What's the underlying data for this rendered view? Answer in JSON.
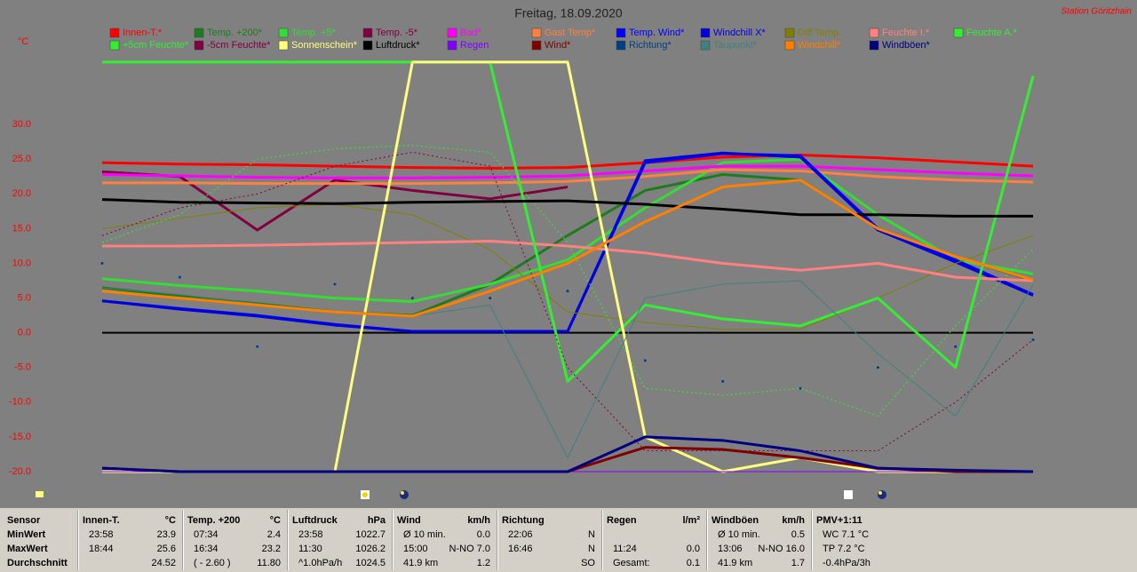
{
  "chart_data": {
    "type": "line",
    "title": "Freitag, 18.09.2020",
    "station": "Station Göritzhain",
    "y_label": "°C",
    "categories": [
      null,
      null,
      null,
      null,
      null,
      null,
      null,
      null,
      null,
      null,
      null,
      null,
      null
    ],
    "ylim": [
      -20,
      40
    ],
    "yticks": [
      {
        "value": -20,
        "label": "-20.0"
      },
      {
        "value": -15,
        "label": "-15.0"
      },
      {
        "value": -10,
        "label": "-10.0"
      },
      {
        "value": -5,
        "label": "-5.0"
      },
      {
        "value": 0,
        "label": "0.0"
      },
      {
        "value": 5,
        "label": "5.0"
      },
      {
        "value": 10,
        "label": "10.0"
      },
      {
        "value": 15,
        "label": "15.0"
      },
      {
        "value": 20,
        "label": "20.0"
      },
      {
        "value": 25,
        "label": "25.0"
      },
      {
        "value": 30,
        "label": "30.0"
      }
    ],
    "zero_line": true,
    "series": [
      {
        "name": "Innen-T.*",
        "color": "#ff0000",
        "values": [
          24.5,
          24.3,
          24.2,
          24.0,
          23.8,
          23.7,
          23.8,
          24.5,
          25.3,
          25.6,
          25.2,
          24.6,
          24.0
        ]
      },
      {
        "name": "Temp. +200*",
        "color": "#1e7b1e",
        "values": [
          6.5,
          5.3,
          4.2,
          3.0,
          2.5,
          7,
          14,
          20.5,
          22.8,
          22,
          15,
          11,
          7.5
        ]
      },
      {
        "name": "Temp. +5*",
        "color": "#33dd33",
        "values": [
          7.8,
          6.8,
          6,
          5,
          4.5,
          7,
          10.5,
          18,
          24.5,
          25,
          17,
          10.5,
          8.5
        ]
      },
      {
        "name": "Temp. -5*",
        "color": "#800040",
        "values": [
          23.2,
          22.5,
          14.8,
          22,
          20.5,
          19.3,
          21,
          null,
          null,
          null,
          null,
          null,
          null
        ]
      },
      {
        "name": "Bad*",
        "color": "#ff00ff",
        "values": [
          22.8,
          22.6,
          22.4,
          22.3,
          22.3,
          22.4,
          22.6,
          23.3,
          24.0,
          24.0,
          23.5,
          23.0,
          22.6
        ]
      },
      {
        "name": "Gast Temp*",
        "color": "#ff8040",
        "values": [
          21.6,
          21.6,
          21.5,
          21.5,
          21.5,
          21.6,
          21.8,
          22.5,
          23.5,
          23.3,
          22.5,
          22,
          21.7
        ]
      },
      {
        "name": "Temp. Wind*",
        "color": "#0000ff",
        "values": [
          4.6,
          3.5,
          2.5,
          1.2,
          0.2,
          0.2,
          0.2,
          24.5,
          25.8,
          25.5,
          15,
          10.5,
          5.5
        ]
      },
      {
        "name": "Windchill X*",
        "color": "#0000e0",
        "values": [
          4.6,
          3.4,
          2.4,
          1.1,
          0.2,
          0.2,
          0.2,
          24.8,
          25.9,
          25.3,
          14.8,
          10.2,
          5.4
        ]
      },
      {
        "name": "Diff Temp.",
        "color": "#808000",
        "style": "thin",
        "values": [
          15,
          16.5,
          18,
          18.5,
          17,
          12,
          3,
          1.5,
          0.5,
          0.5,
          5,
          10,
          14
        ]
      },
      {
        "name": "Feuchte I.*",
        "color": "#ff8080",
        "values": [
          12.5,
          12.5,
          12.6,
          12.8,
          13,
          13.2,
          12.5,
          11.5,
          10,
          9,
          10,
          8,
          7.5
        ]
      },
      {
        "name": "Feuchte A.*",
        "color": "#33ee33",
        "values": [
          39,
          39,
          39,
          39,
          39,
          39,
          -7,
          4,
          2,
          1,
          5,
          -5,
          37
        ]
      },
      {
        "name": "+5cm Feuchte*",
        "color": "#33ee33",
        "style": "dotted",
        "values": [
          13,
          17,
          25,
          26.5,
          27,
          26,
          13,
          -8,
          -9,
          -8,
          -12,
          1,
          12
        ]
      },
      {
        "name": "-5cm Feuchte*",
        "color": "#800040",
        "style": "dotted",
        "values": [
          14,
          18,
          20,
          24,
          26,
          24,
          -5,
          -17,
          -17,
          -17,
          -17,
          -10,
          -1
        ]
      },
      {
        "name": "Sonnenschein*",
        "color": "#ffff80",
        "values": [
          -20,
          -20,
          -20,
          -20,
          39,
          39,
          39,
          -15,
          -20,
          -18,
          -20,
          -20,
          -20
        ]
      },
      {
        "name": "Luftdruck*",
        "color": "#000000",
        "values": [
          19.2,
          18.8,
          18.7,
          18.6,
          18.8,
          18.9,
          19.0,
          18.5,
          17.8,
          17,
          17,
          16.8,
          16.8
        ]
      },
      {
        "name": "Regen",
        "color": "#8000ff",
        "style": "thin",
        "values": [
          -20,
          -20,
          -20,
          -20,
          -20,
          -20,
          -20,
          -20,
          -20,
          -20,
          -20,
          -20,
          -20
        ]
      },
      {
        "name": "Wind*",
        "color": "#800000",
        "values": [
          -19.5,
          -20,
          -20,
          -20,
          -20,
          -20,
          -20,
          -16.5,
          -16.8,
          -18,
          -19.5,
          -20,
          -20
        ]
      },
      {
        "name": "Richtung*",
        "color": "#004080",
        "style": "dots",
        "values": [
          10,
          8,
          -2,
          7,
          5,
          5,
          6,
          -4,
          -7,
          -8,
          -5,
          -2,
          -1
        ]
      },
      {
        "name": "Taupunkt*",
        "color": "#408080",
        "style": "thin",
        "values": [
          6.5,
          5.5,
          4.2,
          3,
          2.4,
          4,
          -18,
          5,
          7,
          7.5,
          -3,
          -12,
          7
        ]
      },
      {
        "name": "Windchill*",
        "color": "#ff8000",
        "values": [
          6,
          5,
          4,
          3,
          2.4,
          6,
          10,
          16,
          21,
          22,
          15,
          11,
          7.6
        ]
      },
      {
        "name": "Windböen*",
        "color": "#000080",
        "values": [
          -19.5,
          -20,
          -20,
          -20,
          -20,
          -20,
          -20,
          -15,
          -15.5,
          -17,
          -19.5,
          -19.8,
          -20
        ]
      }
    ]
  },
  "table": {
    "sensor_column": [
      "Sensor",
      "MinWert",
      "MaxWert",
      "Durchschnitt"
    ],
    "columns": [
      {
        "name": "Innen-T.",
        "unit": "°C",
        "rows": [
          [
            "23:58",
            "23.9"
          ],
          [
            "18:44",
            "25.6"
          ],
          [
            null,
            "24.52"
          ]
        ]
      },
      {
        "name": "Temp. +200",
        "unit": "°C",
        "rows": [
          [
            "07:34",
            "2.4"
          ],
          [
            "16:34",
            "23.2"
          ],
          [
            "( - 2.60 )",
            "11.80"
          ]
        ]
      },
      {
        "name": "Luftdruck",
        "unit": "hPa",
        "rows": [
          [
            "23:58",
            "1022.7"
          ],
          [
            "11:30",
            "1026.2"
          ],
          [
            "^1.0hPa/h",
            "1024.5"
          ]
        ]
      },
      {
        "name": "Wind",
        "unit": "km/h",
        "rows": [
          [
            "Ø 10 min.",
            "0.0"
          ],
          [
            "15:00",
            "N-NO 7.0"
          ],
          [
            "41.9 km",
            "1.2"
          ]
        ]
      },
      {
        "name": "Richtung",
        "unit": null,
        "rows": [
          [
            "22:06",
            "N"
          ],
          [
            "16:46",
            "N"
          ],
          [
            null,
            "SO"
          ]
        ]
      },
      {
        "name": "Regen",
        "unit": "l/m²",
        "rows": [
          [
            null,
            null
          ],
          [
            "11:24",
            "0.0"
          ],
          [
            "Gesamt:",
            "0.1"
          ]
        ]
      },
      {
        "name": "Windböen",
        "unit": "km/h",
        "rows": [
          [
            "Ø 10 min.",
            "0.5"
          ],
          [
            "13:06",
            "N-NO 16.0"
          ],
          [
            "41.9 km",
            "1.7"
          ]
        ]
      },
      {
        "name": "PMV+1:11",
        "unit": null,
        "rows": [
          [
            "WC 7.1 °C",
            null
          ],
          [
            "TP 7.2 °C",
            null
          ],
          [
            "-0.4hPa/3h",
            null
          ]
        ]
      }
    ]
  }
}
